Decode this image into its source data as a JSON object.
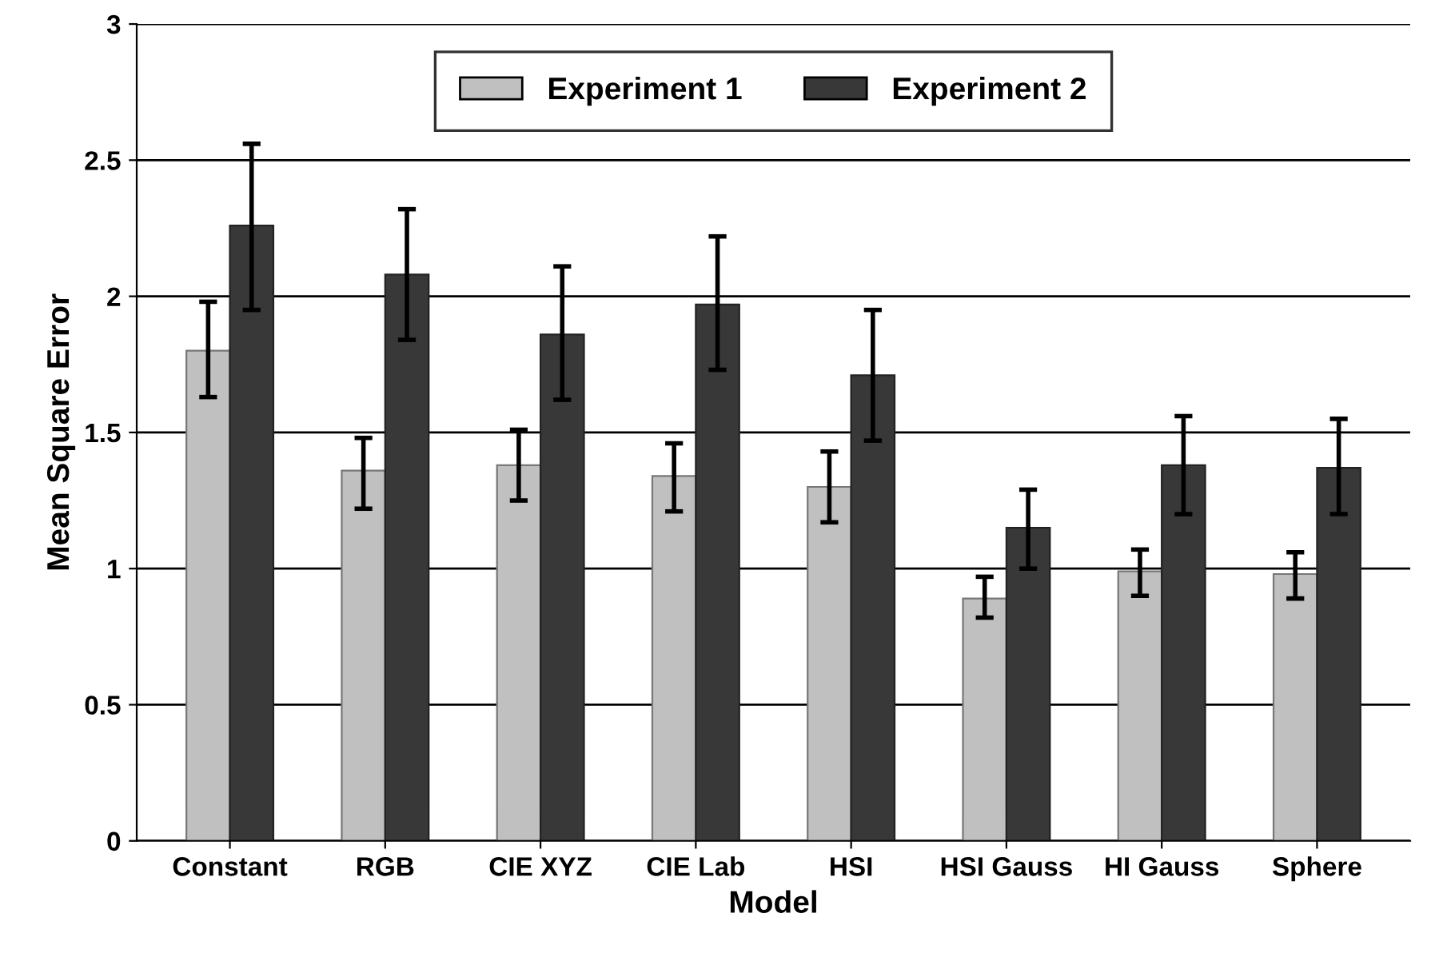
{
  "chart_data": {
    "type": "bar",
    "xlabel": "Model",
    "ylabel": "Mean Square Error",
    "categories": [
      "Constant",
      "RGB",
      "CIE XYZ",
      "CIE Lab",
      "HSI",
      "HSI Gauss",
      "HI Gauss",
      "Sphere"
    ],
    "series": [
      {
        "name": "Experiment 1",
        "color": "#c0c0c0",
        "values": [
          1.8,
          1.36,
          1.38,
          1.34,
          1.3,
          0.89,
          0.99,
          0.98
        ],
        "errors": [
          [
            1.63,
            1.98
          ],
          [
            1.22,
            1.48
          ],
          [
            1.25,
            1.51
          ],
          [
            1.21,
            1.46
          ],
          [
            1.17,
            1.43
          ],
          [
            0.82,
            0.97
          ],
          [
            0.9,
            1.07
          ],
          [
            0.89,
            1.06
          ]
        ]
      },
      {
        "name": "Experiment 2",
        "color": "#383838",
        "values": [
          2.26,
          2.08,
          1.86,
          1.97,
          1.71,
          1.15,
          1.38,
          1.37
        ],
        "errors": [
          [
            1.95,
            2.56
          ],
          [
            1.84,
            2.32
          ],
          [
            1.62,
            2.11
          ],
          [
            1.73,
            2.22
          ],
          [
            1.47,
            1.95
          ],
          [
            1.0,
            1.29
          ],
          [
            1.2,
            1.56
          ],
          [
            1.2,
            1.55
          ]
        ]
      }
    ],
    "ylim": [
      0,
      3
    ],
    "yticks": [
      0,
      0.5,
      1,
      1.5,
      2,
      2.5,
      3
    ],
    "grid": "y",
    "legend": "top"
  }
}
